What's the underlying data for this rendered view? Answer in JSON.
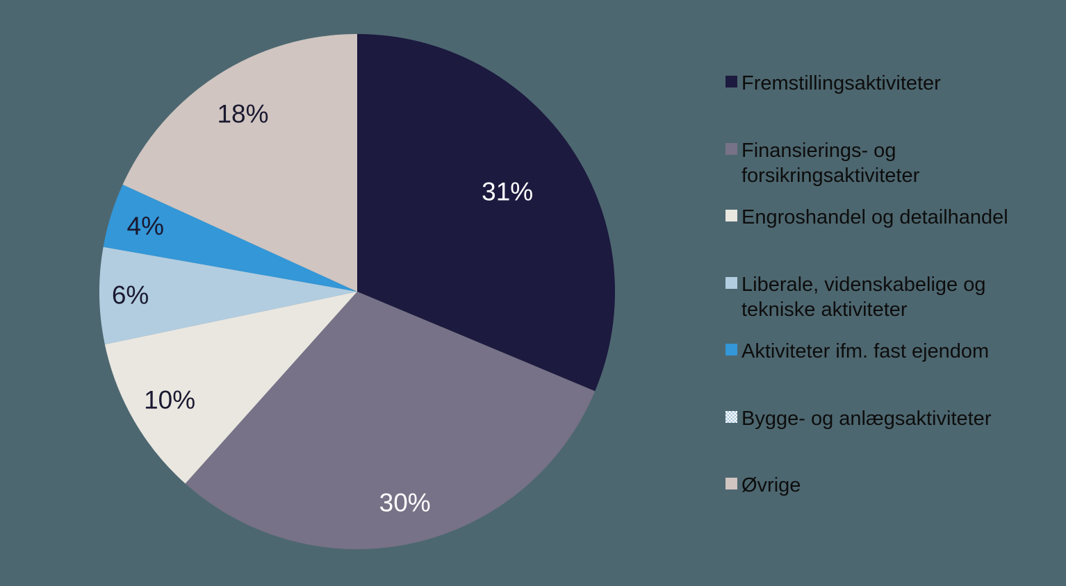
{
  "page": {
    "background_color": "#4d6770"
  },
  "chart_data": {
    "type": "pie",
    "title": "",
    "legend_position": "right",
    "start_angle_deg": 0,
    "direction": "clockwise",
    "labels_shown_total_percent": 99,
    "series": [
      {
        "name": "Fremstillingsaktiviteter",
        "value": 31,
        "label": "31%",
        "color": "#1c1a3e",
        "label_color": "#ffffff"
      },
      {
        "name": "Finansierings- og forsikringsaktiviteter",
        "value": 30,
        "label": "30%",
        "color": "#777287",
        "label_color": "#ffffff"
      },
      {
        "name": "Engroshandel og detailhandel",
        "value": 10,
        "label": "10%",
        "color": "#eae7e1",
        "label_color": "#1a1930"
      },
      {
        "name": "Liberale, videnskabelige og tekniske aktiviteter",
        "value": 6,
        "label": "6%",
        "color": "#b2cde0",
        "label_color": "#1a1930"
      },
      {
        "name": "Aktiviteter ifm. fast ejendom",
        "value": 4,
        "label": "4%",
        "color": "#3397d8",
        "label_color": "#1a1930"
      },
      {
        "name": "Bygge- og anlægsaktiviteter",
        "value": null,
        "label": "",
        "color": "#a9c7dc",
        "swatch_style": "checker",
        "swatch_colors": [
          "#ffffff",
          "#a9c7dc"
        ]
      },
      {
        "name": "Øvrige",
        "value": 18,
        "label": "18%",
        "color": "#d0c5c1",
        "label_color": "#1a1930"
      }
    ]
  }
}
